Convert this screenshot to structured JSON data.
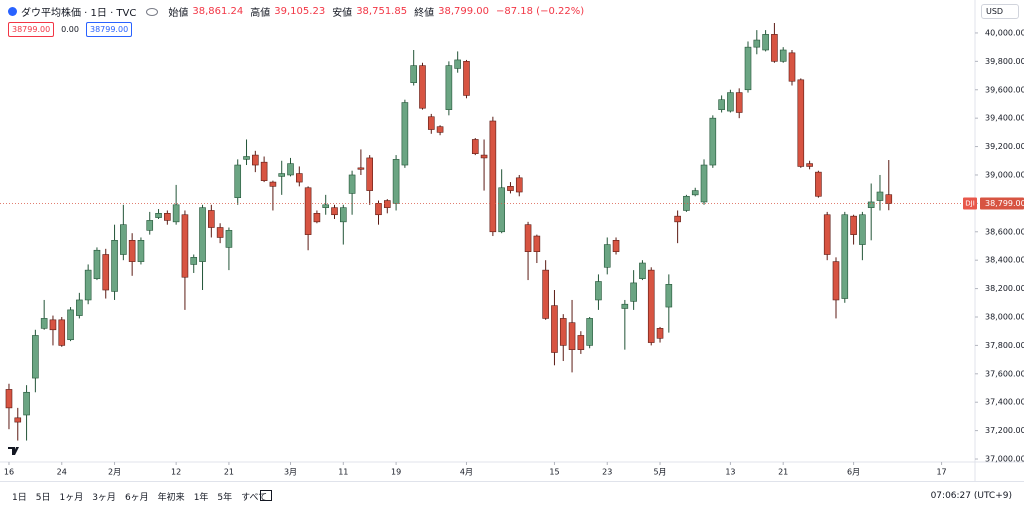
{
  "header": {
    "symbol": "ダウ平均株価 · 1日 · TVC",
    "open_label": "始値",
    "open": "38,861.24",
    "high_label": "高値",
    "high": "39,105.23",
    "low_label": "安値",
    "low": "38,751.85",
    "close_label": "終値",
    "close": "38,799.00",
    "change": "−87.18 (−0.22%)"
  },
  "inputs": [
    "38799.00",
    "0.00",
    "38799.00"
  ],
  "currency": "USD",
  "chart_data": {
    "type": "candlestick",
    "symbol_tag": "DJI",
    "last_price": 38799,
    "last_price_label": "38,799.00",
    "up_color": "#6ba583",
    "down_color": "#d75442",
    "up_border": "#225437",
    "down_border": "#5b1a13",
    "grid": false,
    "open": [
      37490,
      37290,
      37310,
      37570,
      37920,
      37980,
      37980,
      37840,
      38010,
      38120,
      38270,
      38440,
      38180,
      38440,
      38540,
      38390,
      38610,
      38700,
      38730,
      38670,
      38720,
      38370,
      38390,
      38750,
      38630,
      38490,
      38840,
      39110,
      39140,
      39090,
      38950,
      38990,
      39000,
      39010,
      38910,
      38730,
      38770,
      38770,
      38670,
      38870,
      39050,
      39120,
      38800,
      38820,
      38800,
      39070,
      39650,
      39770,
      39410,
      39340,
      39460,
      39750,
      39800,
      39250,
      39140,
      39380,
      38600,
      38920,
      38980,
      38650,
      38570,
      38330,
      38080,
      37990,
      37960,
      37870,
      37800,
      38120,
      38350,
      38540,
      38060,
      38110,
      38270,
      38330,
      37920,
      38070,
      38710,
      38750,
      38860,
      38810,
      39070,
      39460,
      39450,
      39580,
      39600,
      39900,
      39880,
      39990,
      39800,
      39860,
      39670,
      39080,
      39020,
      38720,
      38390,
      38130,
      38710,
      38510,
      38770,
      38820,
      38861.24
    ],
    "high": [
      37530,
      37360,
      37520,
      37910,
      38120,
      38010,
      38000,
      38070,
      38170,
      38370,
      38490,
      38480,
      38650,
      38790,
      38590,
      38560,
      38740,
      38760,
      38750,
      38930,
      38750,
      38440,
      38790,
      38790,
      38660,
      38630,
      39110,
      39250,
      39170,
      39130,
      38960,
      39100,
      39120,
      39060,
      38920,
      38750,
      38860,
      38790,
      38790,
      39030,
      39180,
      39140,
      38820,
      38830,
      39140,
      39530,
      39880,
      39790,
      39430,
      39350,
      39800,
      39870,
      39810,
      39260,
      39250,
      39410,
      39040,
      38950,
      39000,
      38670,
      38580,
      38400,
      38190,
      38020,
      38120,
      37900,
      38000,
      38300,
      38560,
      38560,
      38120,
      38330,
      38400,
      38350,
      37930,
      38300,
      38750,
      38860,
      38910,
      39110,
      39420,
      39560,
      39600,
      39610,
      39940,
      40020,
      40020,
      40070,
      39900,
      39880,
      39680,
      39100,
      39030,
      38740,
      38420,
      38740,
      38720,
      38740,
      38940,
      39000,
      39105.23
    ],
    "low": [
      37210,
      37130,
      37130,
      37470,
      37910,
      37800,
      37790,
      37830,
      37990,
      38090,
      38260,
      38130,
      38120,
      38400,
      38290,
      38370,
      38580,
      38690,
      38650,
      38650,
      38050,
      38310,
      38190,
      38560,
      38520,
      38330,
      38790,
      39070,
      39020,
      38950,
      38750,
      38860,
      38990,
      38920,
      38470,
      38660,
      38720,
      38690,
      38510,
      38720,
      39000,
      38790,
      38650,
      38730,
      38750,
      39050,
      39630,
      39460,
      39290,
      39280,
      39420,
      39720,
      39540,
      39140,
      38890,
      38570,
      38590,
      38870,
      38850,
      38260,
      38380,
      37980,
      37660,
      37690,
      37610,
      37740,
      37780,
      38050,
      38300,
      38440,
      37770,
      38050,
      38260,
      37800,
      37820,
      37890,
      38520,
      38740,
      38850,
      38790,
      39050,
      39440,
      39440,
      39400,
      39580,
      39850,
      39870,
      39790,
      39790,
      39630,
      39050,
      39040,
      38840,
      38400,
      37990,
      38100,
      38510,
      38400,
      38540,
      38750,
      38751.85
    ],
    "close": [
      37360,
      37260,
      37470,
      37870,
      37990,
      37910,
      37800,
      38050,
      38120,
      38330,
      38470,
      38190,
      38540,
      38650,
      38390,
      38540,
      38680,
      38730,
      38680,
      38790,
      38280,
      38420,
      38770,
      38630,
      38560,
      38610,
      39070,
      39130,
      39070,
      38960,
      38920,
      39010,
      39080,
      38950,
      38580,
      38670,
      38790,
      38720,
      38770,
      39000,
      39040,
      38890,
      38720,
      38770,
      39110,
      39510,
      39770,
      39470,
      39320,
      39300,
      39770,
      39810,
      39560,
      39150,
      39120,
      38600,
      38910,
      38890,
      38880,
      38460,
      38460,
      37990,
      37750,
      37800,
      37770,
      37770,
      37990,
      38250,
      38510,
      38460,
      38090,
      38240,
      38380,
      37820,
      37850,
      38230,
      38670,
      38850,
      38890,
      39070,
      39400,
      39530,
      39580,
      39440,
      39900,
      39950,
      39990,
      39800,
      39880,
      39660,
      39060,
      39060,
      38850,
      38440,
      38120,
      38720,
      38580,
      38720,
      38810,
      38880,
      38799
    ],
    "xlim": [
      -1.02,
      109.8
    ],
    "xticks": [
      {
        "value": 0,
        "label": "16"
      },
      {
        "value": 6,
        "label": "24"
      },
      {
        "value": 12,
        "label": "2月"
      },
      {
        "value": 19,
        "label": "12"
      },
      {
        "value": 25,
        "label": "21"
      },
      {
        "value": 32,
        "label": "3月"
      },
      {
        "value": 38,
        "label": "11"
      },
      {
        "value": 44,
        "label": "19"
      },
      {
        "value": 52,
        "label": "4月"
      },
      {
        "value": 62,
        "label": "15"
      },
      {
        "value": 68,
        "label": "23"
      },
      {
        "value": 74,
        "label": "5月"
      },
      {
        "value": 82,
        "label": "13"
      },
      {
        "value": 88,
        "label": "21"
      },
      {
        "value": 96,
        "label": "6月"
      },
      {
        "value": 106,
        "label": "17"
      }
    ],
    "ylim": [
      36979,
      40232
    ],
    "yticks": [
      {
        "value": 37000,
        "label": "37,000.00"
      },
      {
        "value": 37200,
        "label": "37,200.00"
      },
      {
        "value": 37400,
        "label": "37,400.00"
      },
      {
        "value": 37600,
        "label": "37,600.00"
      },
      {
        "value": 37800,
        "label": "37,800.00"
      },
      {
        "value": 38000,
        "label": "38,000.00"
      },
      {
        "value": 38200,
        "label": "38,200.00"
      },
      {
        "value": 38400,
        "label": "38,400.00"
      },
      {
        "value": 38600,
        "label": "38,600.00"
      },
      {
        "value": 38800,
        "label": "38,800.00"
      },
      {
        "value": 39000,
        "label": "39,000.00"
      },
      {
        "value": 39200,
        "label": "39,200.00"
      },
      {
        "value": 39400,
        "label": "39,400.00"
      },
      {
        "value": 39600,
        "label": "39,600.00"
      },
      {
        "value": 39800,
        "label": "39,800.00"
      },
      {
        "value": 40000,
        "label": "40,000.00"
      }
    ]
  },
  "toolbar": {
    "ranges": [
      "1日",
      "5日",
      "1ヶ月",
      "3ヶ月",
      "6ヶ月",
      "年初来",
      "1年",
      "5年",
      "すべて"
    ],
    "clock": "07:06:27 (UTC+9)"
  }
}
